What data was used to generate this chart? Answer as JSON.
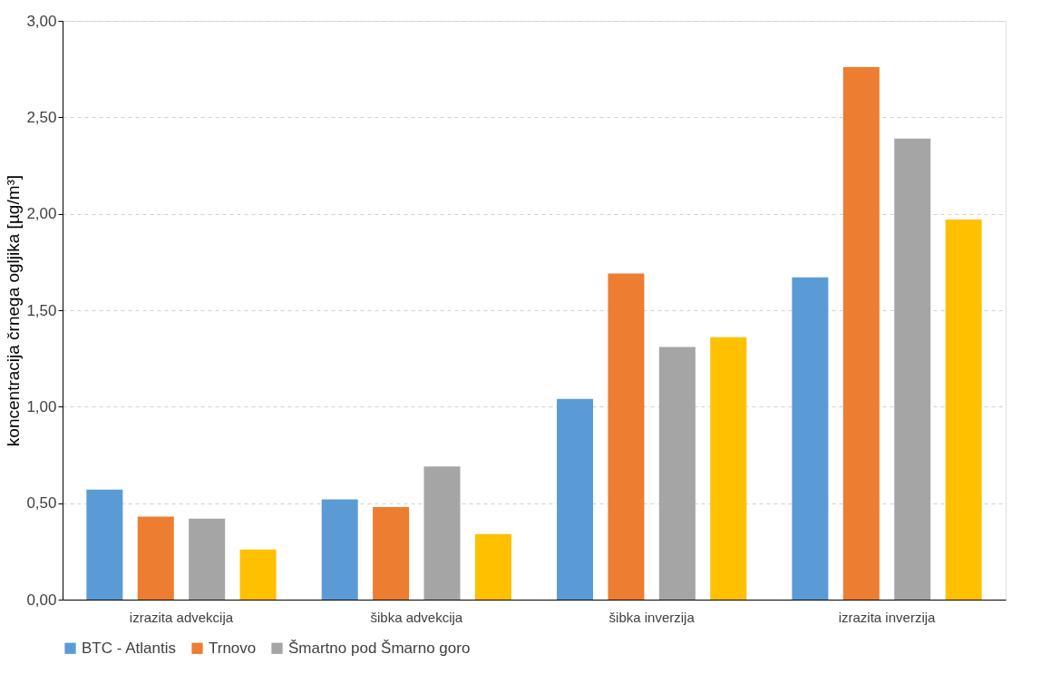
{
  "chart_data": {
    "type": "bar",
    "ylabel": "koncentracija črnega ogljika [µg/m³]",
    "categories": [
      "izrazita advekcija",
      "šibka advekcija",
      "šibka inverzija",
      "izrazita inverzija"
    ],
    "series": [
      {
        "name": "BTC - Atlantis",
        "color": "#5b9bd5",
        "values": [
          0.57,
          0.52,
          1.04,
          1.67
        ]
      },
      {
        "name": "Trnovo",
        "color": "#ed7d31",
        "values": [
          0.43,
          0.48,
          1.69,
          2.76
        ]
      },
      {
        "name": "Šmartno pod Šmarno goro",
        "color": "#a5a5a5",
        "values": [
          0.42,
          0.69,
          1.31,
          2.39
        ]
      },
      {
        "color": "#ffc000",
        "values": [
          0.26,
          0.34,
          1.36,
          1.97
        ]
      }
    ],
    "ylim": [
      0,
      3
    ],
    "yticks": [
      {
        "value": 0,
        "label": "0,00"
      },
      {
        "value": 0.5,
        "label": "0,50"
      },
      {
        "value": 1,
        "label": "1,00"
      },
      {
        "value": 1.5,
        "label": "1,50"
      },
      {
        "value": 2,
        "label": "2,00"
      },
      {
        "value": 2.5,
        "label": "2,50"
      },
      {
        "value": 3,
        "label": "3,00"
      }
    ],
    "grid": "y",
    "legend": "bottom"
  }
}
